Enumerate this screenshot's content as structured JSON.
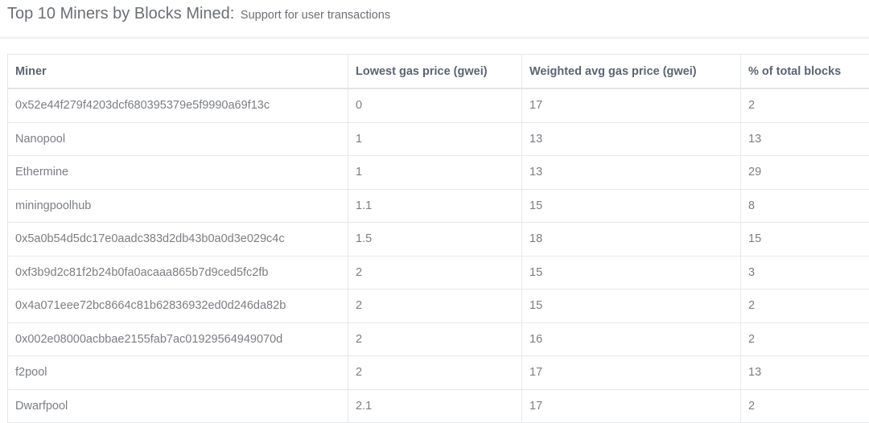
{
  "title": "Top 10 Miners by Blocks Mined:",
  "subtitle": "Support for user transactions",
  "table": {
    "headers": [
      "Miner",
      "Lowest gas price (gwei)",
      "Weighted avg gas price (gwei)",
      "% of total blocks"
    ],
    "rows": [
      [
        "0x52e44f279f4203dcf680395379e5f9990a69f13c",
        "0",
        "17",
        "2"
      ],
      [
        "Nanopool",
        "1",
        "13",
        "13"
      ],
      [
        "Ethermine",
        "1",
        "13",
        "29"
      ],
      [
        "miningpoolhub",
        "1.1",
        "15",
        "8"
      ],
      [
        "0x5a0b54d5dc17e0aadc383d2db43b0a0d3e029c4c",
        "1.5",
        "18",
        "15"
      ],
      [
        "0xf3b9d2c81f2b24b0fa0acaaa865b7d9ced5fc2fb",
        "2",
        "15",
        "3"
      ],
      [
        "0x4a071eee72bc8664c81b62836932ed0d246da82b",
        "2",
        "15",
        "2"
      ],
      [
        "0x002e08000acbbae2155fab7ac01929564949070d",
        "2",
        "16",
        "2"
      ],
      [
        "f2pool",
        "2",
        "17",
        "13"
      ],
      [
        "Dwarfpool",
        "2.1",
        "17",
        "2"
      ]
    ]
  }
}
